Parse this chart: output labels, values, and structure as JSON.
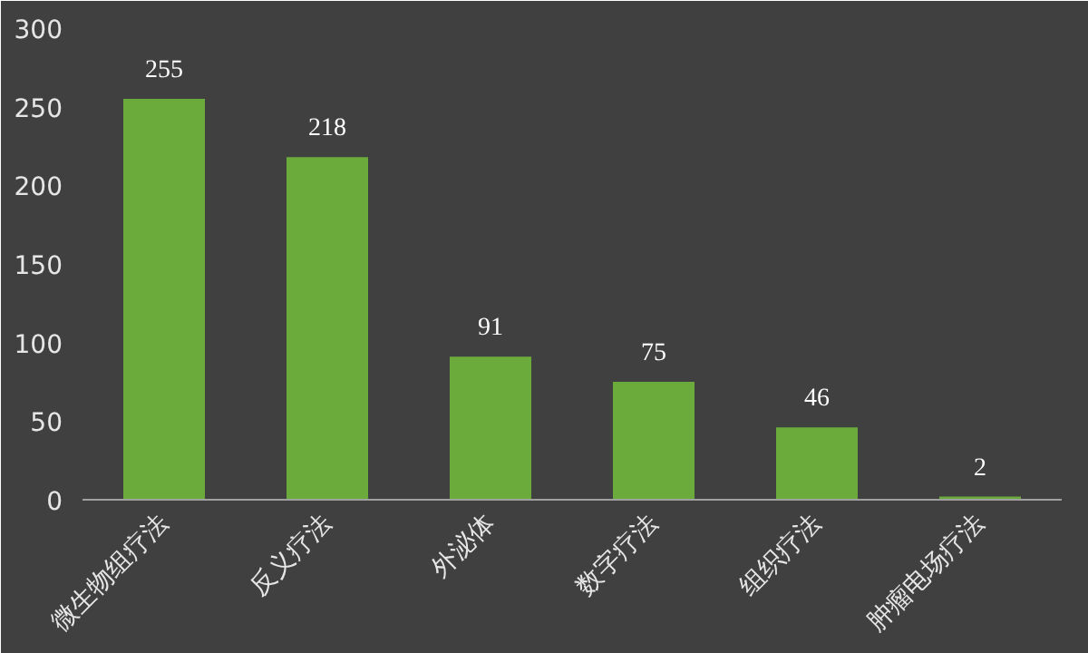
{
  "chart_data": {
    "type": "bar",
    "categories": [
      "微生物组疗法",
      "反义疗法",
      "外泌体",
      "数字疗法",
      "组织疗法",
      "肿瘤电场疗法"
    ],
    "values": [
      255,
      218,
      91,
      75,
      46,
      2
    ],
    "color": "#6aab3c",
    "ylim": [
      0,
      300
    ],
    "yticks": [
      0,
      50,
      100,
      150,
      200,
      250,
      300
    ],
    "grid": false,
    "data_labels": true
  }
}
